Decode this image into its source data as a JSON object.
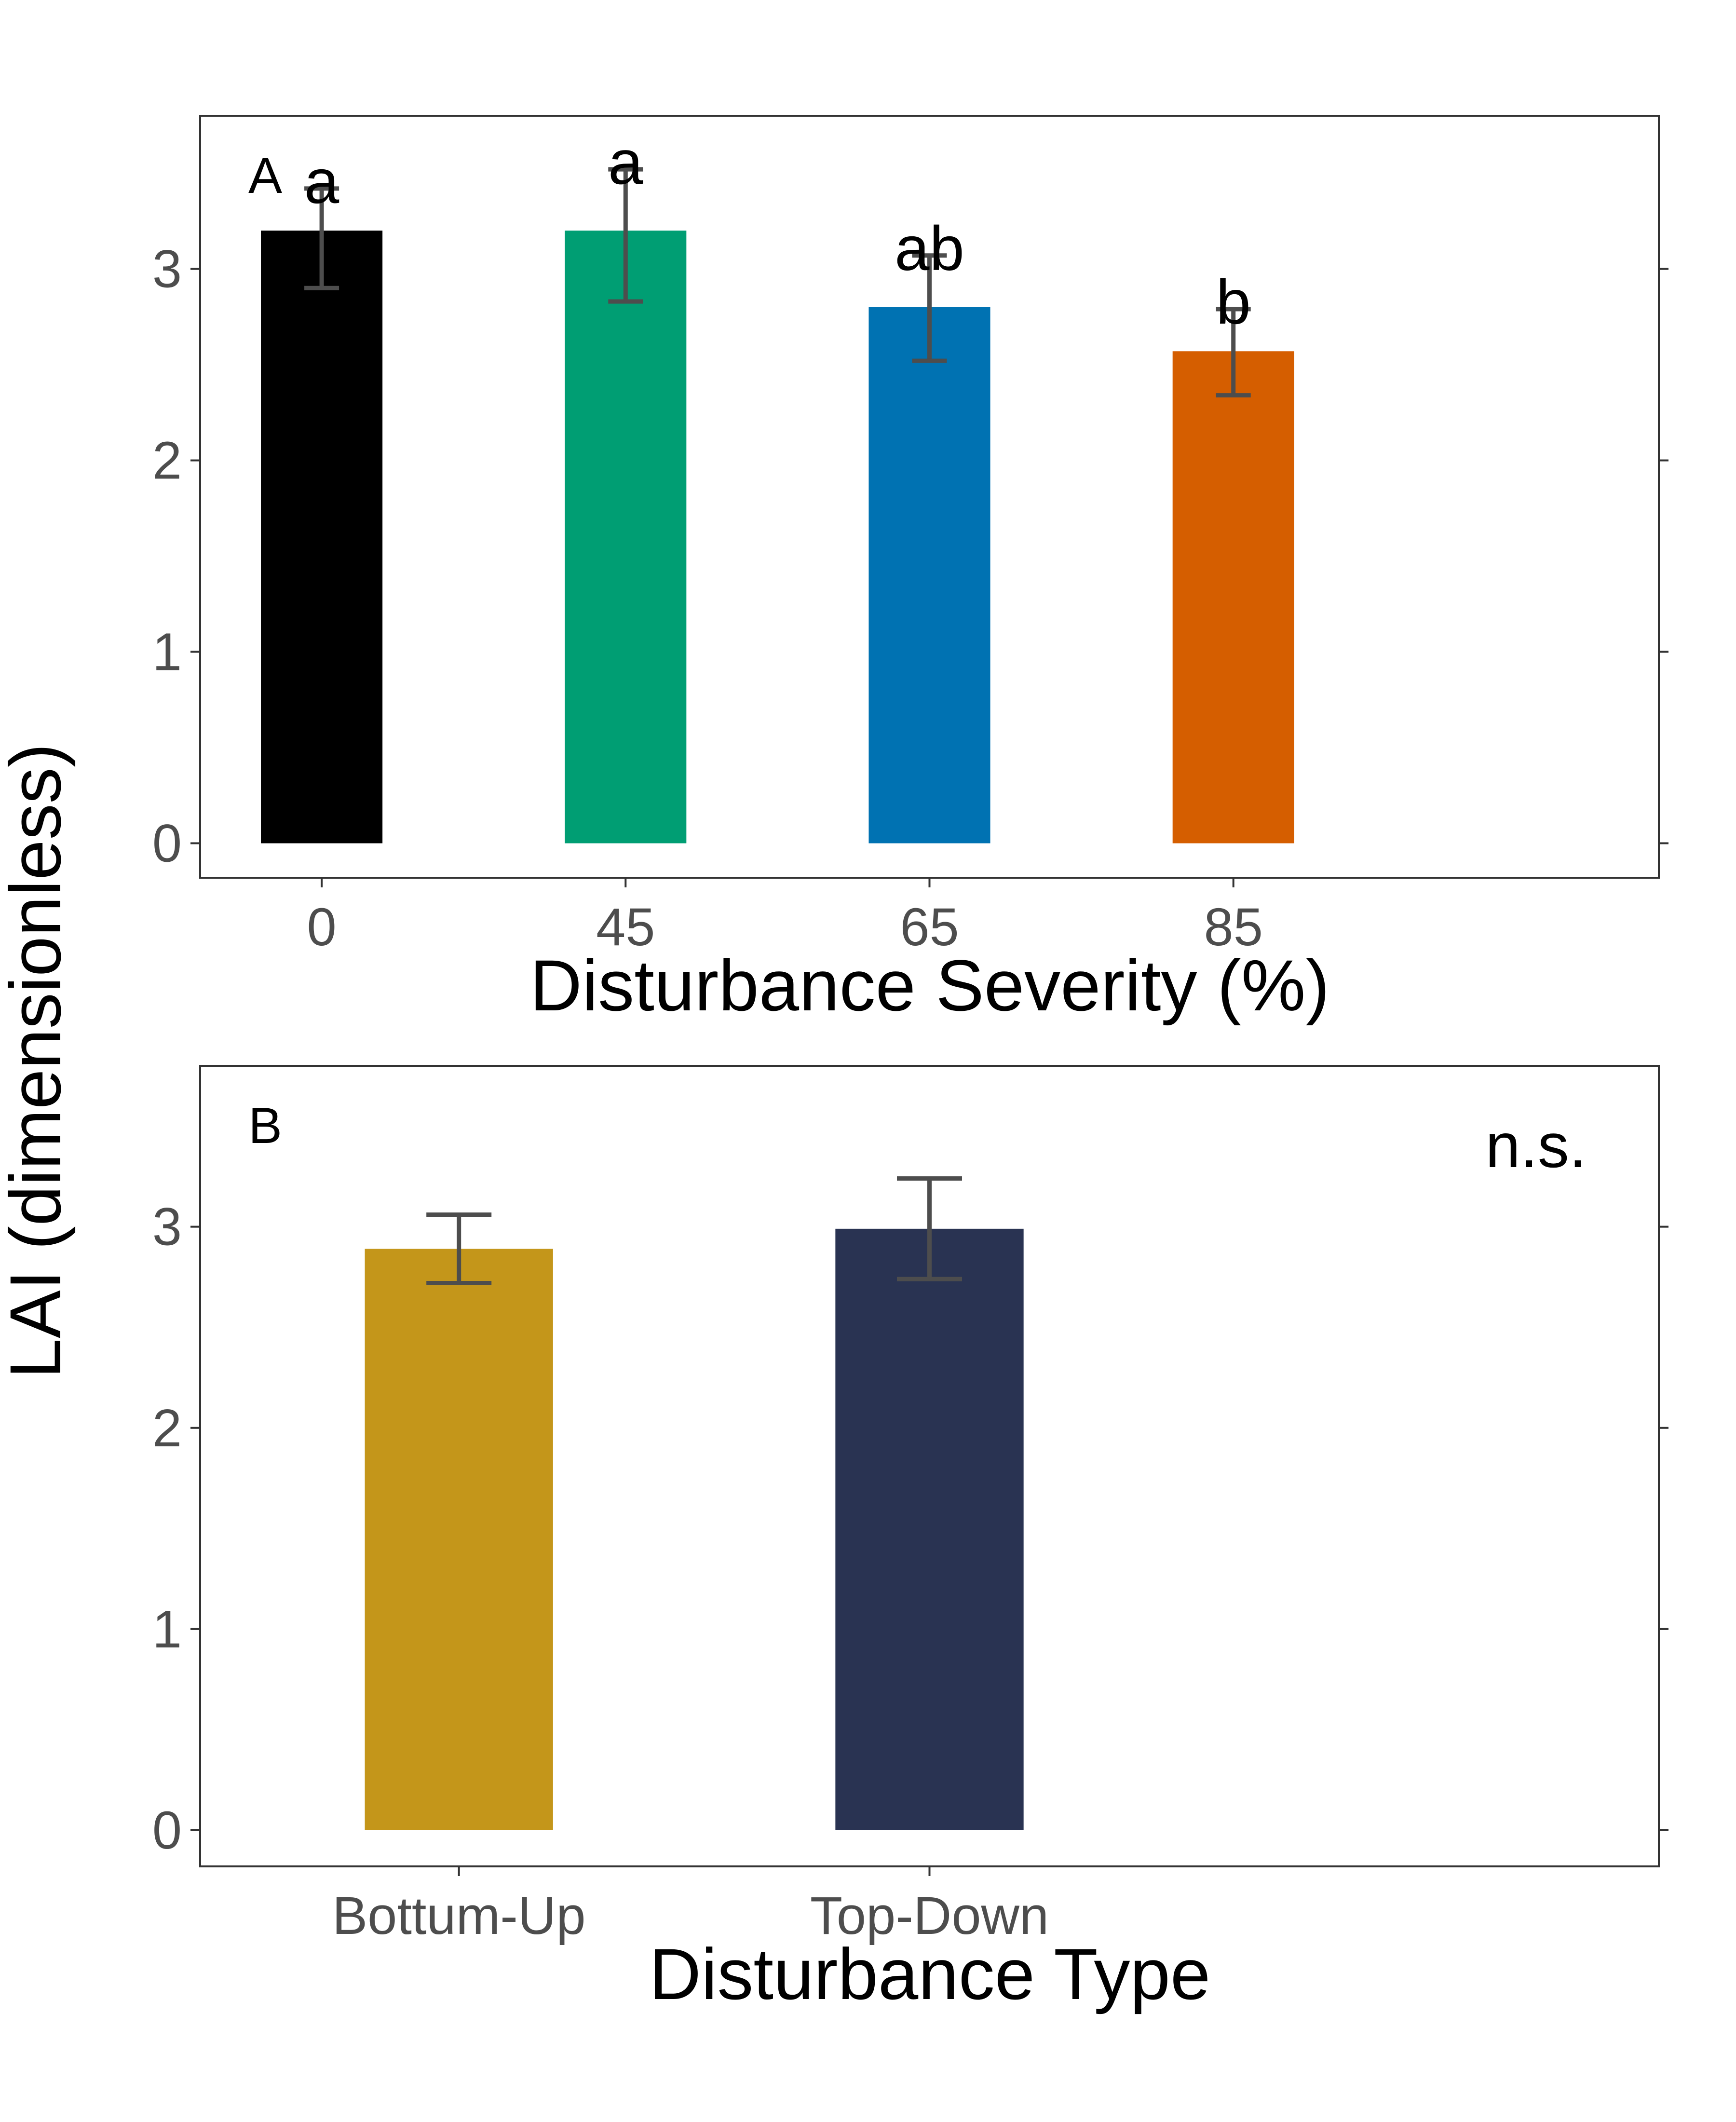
{
  "ylabel": "LAI (dimensionless)",
  "chart_data": [
    {
      "type": "bar",
      "panel_label": "A",
      "xlabel": "Disturbance Severity (%)",
      "categories": [
        "0",
        "45",
        "65",
        "85"
      ],
      "values": [
        3.2,
        3.2,
        2.8,
        2.57
      ],
      "error_low": [
        2.9,
        2.83,
        2.52,
        2.34
      ],
      "error_high": [
        3.42,
        3.52,
        3.07,
        2.79
      ],
      "letters": [
        "a",
        "a",
        "ab",
        "b"
      ],
      "colors": [
        "#000000",
        "#009E73",
        "#0072B2",
        "#D55E00"
      ],
      "ylim": [
        -0.18,
        3.8
      ],
      "yticks": [
        0,
        1,
        2,
        3
      ],
      "grid": false
    },
    {
      "type": "bar",
      "panel_label": "B",
      "xlabel": "Disturbance Type",
      "categories": [
        "Bottum-Up",
        "Top-Down"
      ],
      "values": [
        2.89,
        2.99
      ],
      "error_low": [
        2.72,
        2.74
      ],
      "error_high": [
        3.06,
        3.24
      ],
      "colors": [
        "#C4961A",
        "#293352"
      ],
      "annotation": "n.s.",
      "ylim": [
        -0.18,
        3.8
      ],
      "yticks": [
        0,
        1,
        2,
        3
      ],
      "grid": false
    }
  ]
}
